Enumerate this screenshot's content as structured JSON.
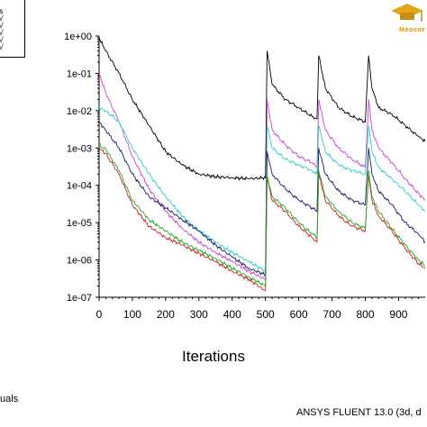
{
  "chart_data": {
    "type": "line",
    "xlabel": "Iterations",
    "xlim": [
      0,
      980
    ],
    "ylim": [
      1e-07,
      1
    ],
    "yscale": "log",
    "x_ticks": [
      "0",
      "100",
      "200",
      "300",
      "400",
      "500",
      "600",
      "700",
      "800",
      "900"
    ],
    "y_ticks": [
      "1e+00",
      "1e-01",
      "1e-02",
      "1e-03",
      "1e-04",
      "1e-05",
      "1e-06",
      "1e-07"
    ],
    "grid": false,
    "series": [
      {
        "color": "#000000",
        "x": [
          0,
          20,
          60,
          100,
          150,
          200,
          250,
          300,
          350,
          400,
          450,
          500,
          505,
          520,
          560,
          600,
          640,
          655,
          660,
          680,
          720,
          760,
          800,
          810,
          820,
          840,
          880,
          920,
          960,
          980
        ],
        "values": [
          0.9,
          0.4,
          0.1,
          0.02,
          0.004,
          0.0008,
          0.00035,
          0.0002,
          0.00017,
          0.00016,
          0.00015,
          0.00016,
          0.4,
          0.05,
          0.02,
          0.012,
          0.007,
          0.006,
          0.3,
          0.04,
          0.012,
          0.007,
          0.005,
          0.3,
          0.04,
          0.012,
          0.008,
          0.004,
          0.002,
          0.0015
        ]
      },
      {
        "color": "#cc44cc",
        "x": [
          0,
          20,
          60,
          100,
          150,
          200,
          250,
          300,
          350,
          400,
          450,
          500,
          505,
          520,
          560,
          600,
          640,
          655,
          660,
          680,
          720,
          760,
          800,
          810,
          820,
          840,
          880,
          920,
          960,
          980
        ],
        "values": [
          0.1,
          0.03,
          0.005,
          0.0006,
          8e-05,
          2e-05,
          7e-06,
          3e-06,
          1.6e-06,
          9e-07,
          5e-07,
          3e-07,
          0.02,
          0.003,
          0.0012,
          0.0006,
          0.0004,
          0.0003,
          0.02,
          0.003,
          0.001,
          0.0005,
          0.0003,
          0.02,
          0.003,
          0.001,
          0.0004,
          0.00015,
          6e-05,
          4e-05
        ]
      },
      {
        "color": "#33cccc",
        "x": [
          0,
          20,
          60,
          100,
          150,
          200,
          250,
          300,
          350,
          400,
          450,
          500,
          505,
          520,
          560,
          600,
          640,
          655,
          660,
          680,
          720,
          760,
          800,
          810,
          820,
          840,
          880,
          920,
          960,
          980
        ],
        "values": [
          0.012,
          0.01,
          0.005,
          0.001,
          0.0002,
          5e-05,
          1.5e-05,
          6e-06,
          3e-06,
          1.6e-06,
          9e-07,
          5e-07,
          0.004,
          0.001,
          0.0005,
          0.00035,
          0.00025,
          0.0002,
          0.004,
          0.0008,
          0.00035,
          0.00025,
          0.0002,
          0.004,
          0.0008,
          0.0003,
          0.00015,
          7e-05,
          3e-05,
          2e-05
        ]
      },
      {
        "color": "#1a1a66",
        "x": [
          0,
          20,
          60,
          100,
          150,
          200,
          250,
          300,
          350,
          400,
          450,
          500,
          505,
          520,
          560,
          600,
          640,
          655,
          660,
          680,
          720,
          760,
          800,
          810,
          820,
          840,
          880,
          920,
          960,
          980
        ],
        "values": [
          0.005,
          0.003,
          0.001,
          0.0002,
          5e-05,
          2.5e-05,
          1.2e-05,
          6e-06,
          2.5e-06,
          1.2e-06,
          6e-07,
          4e-07,
          0.0008,
          0.0002,
          8e-05,
          4e-05,
          2.5e-05,
          2e-05,
          0.001,
          0.0002,
          7e-05,
          4e-05,
          3e-05,
          0.001,
          0.0002,
          7e-05,
          3e-05,
          1e-05,
          5e-06,
          3e-06
        ]
      },
      {
        "color": "#cc2222",
        "x": [
          0,
          20,
          60,
          100,
          150,
          200,
          250,
          300,
          350,
          400,
          450,
          500,
          505,
          520,
          560,
          600,
          640,
          655,
          660,
          680,
          720,
          760,
          800,
          810,
          820,
          840,
          880,
          920,
          960,
          980
        ],
        "values": [
          0.001,
          0.0007,
          0.0002,
          3e-05,
          8e-06,
          4e-06,
          2.5e-06,
          1.5e-06,
          9e-07,
          5e-07,
          3e-07,
          1.5e-07,
          0.00015,
          4e-05,
          2e-05,
          8e-06,
          4e-06,
          3e-06,
          0.0002,
          4e-05,
          1.5e-05,
          8e-06,
          6e-06,
          0.0002,
          4e-05,
          1.5e-05,
          6e-06,
          2e-06,
          8e-07,
          6e-07
        ]
      },
      {
        "color": "#22aa22",
        "x": [
          0,
          20,
          60,
          100,
          150,
          200,
          250,
          300,
          350,
          400,
          450,
          500,
          505,
          520,
          560,
          600,
          640,
          655,
          660,
          680,
          720,
          760,
          800,
          810,
          820,
          840,
          880,
          920,
          960,
          980
        ],
        "values": [
          0.0012,
          0.0009,
          0.00025,
          4e-05,
          1.2e-05,
          6e-06,
          3e-06,
          1.8e-06,
          1.1e-06,
          6e-07,
          3.5e-07,
          2e-07,
          0.00018,
          5e-05,
          2.5e-05,
          1e-05,
          5e-06,
          4e-06,
          0.00025,
          5e-05,
          2e-05,
          1e-05,
          7e-06,
          0.00025,
          5e-05,
          2e-05,
          7e-06,
          2.5e-06,
          1e-06,
          7e-07
        ]
      }
    ]
  },
  "footer": {
    "left": "uals",
    "right": "ANSYS FLUENT 13.0 (3d, d"
  },
  "legend": {
    "marks": [
      "s",
      "√",
      "√",
      "√",
      "√",
      "√"
    ]
  },
  "logo": {
    "text": "Neocor"
  }
}
